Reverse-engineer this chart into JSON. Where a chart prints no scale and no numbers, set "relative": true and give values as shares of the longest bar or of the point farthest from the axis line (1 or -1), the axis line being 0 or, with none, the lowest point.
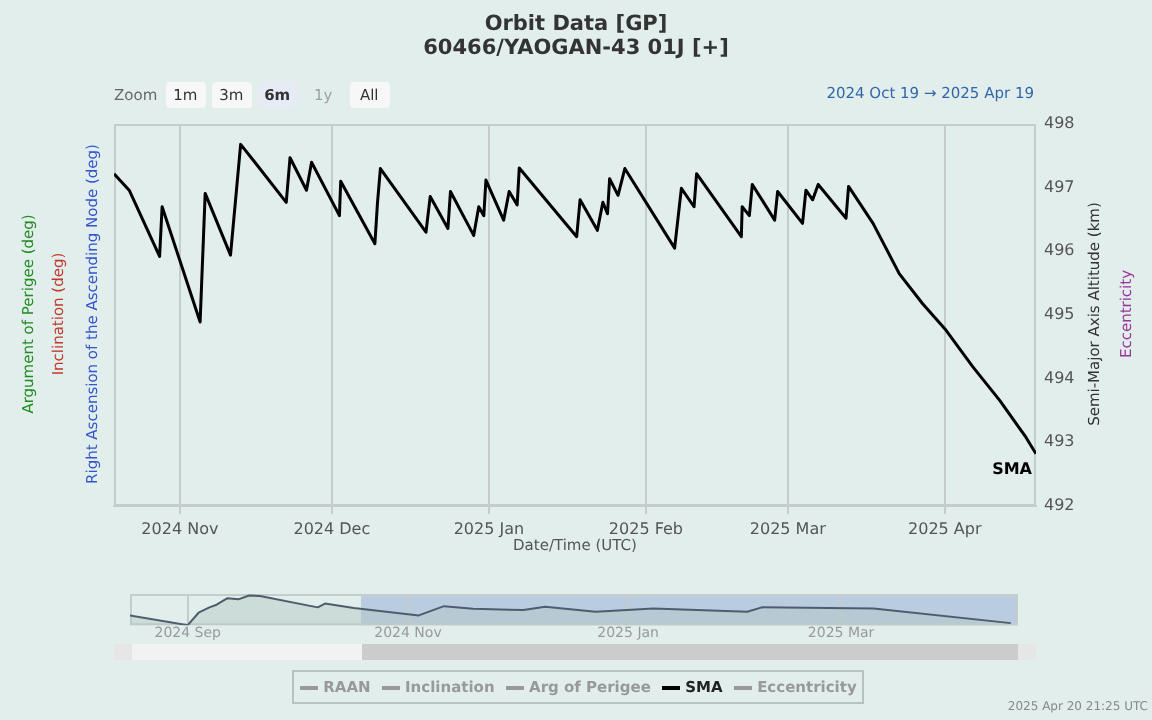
{
  "chart_data": [
    {
      "type": "line",
      "title": "Orbit Data [GP]",
      "subtitle": "60466/YAOGAN-43 01J [+]",
      "xlabel": "Date/Time (UTC)",
      "ylabel": "Semi-Major Axis Altitude (km)",
      "annotations": [
        "Right Ascension of the Ascending Node (deg)",
        "Inclination (deg)",
        "Argument of Perigee (deg)",
        "Eccentricity",
        "Zoom",
        "1m",
        "3m",
        "6m",
        "1y",
        "All",
        "2024 Oct 19 → 2025 Apr 19",
        "2025 Apr 20 21:25 UTC"
      ],
      "series": [
        {
          "name": "RAAN",
          "color": "#999999"
        },
        {
          "name": "Inclination",
          "color": "#999999"
        },
        {
          "name": "Arg of Perigee",
          "color": "#999999"
        },
        {
          "name": "SMA",
          "color": "#000000",
          "x": [
            "2024-10-19",
            "2024-10-22",
            "2024-10-28",
            "2024-10-28T12:00",
            "2024-11-05",
            "2024-11-06",
            "2024-11-11",
            "2024-11-13",
            "2024-11-16",
            "2024-11-22",
            "2024-11-22T18:00",
            "2024-11-26",
            "2024-11-27",
            "2024-12-02T12:00",
            "2024-12-02T18:00",
            "2024-12-09T12:00",
            "2024-12-10",
            "2024-12-10T14:00",
            "2024-12-19T14:00",
            "2024-12-20T10:00",
            "2024-12-23T22:00",
            "2024-12-24T10:00",
            "2024-12-29",
            "2024-12-30",
            "2024-12-31",
            "2024-12-31T10:00",
            "2025-01-03T22:00",
            "2025-01-05",
            "2025-01-06T14:00",
            "2025-01-07",
            "2025-01-18T08:00",
            "2025-01-19",
            "2025-01-22T10:00",
            "2025-01-23T12:00",
            "2025-01-24T10:00",
            "2025-01-24T20:00",
            "2025-01-26T12:00",
            "2025-01-27T20:00",
            "2025-02-06T16:00",
            "2025-02-08",
            "2025-02-10T12:00",
            "2025-02-11",
            "2025-02-19T20:00",
            "2025-02-20",
            "2025-02-21T10:00",
            "2025-02-22",
            "2025-02-26T10:00",
            "2025-02-27",
            "2025-03-03T22:00",
            "2025-03-04T14:00",
            "2025-03-05T22:00",
            "2025-03-07",
            "2025-03-12T12:00",
            "2025-03-13",
            "2025-03-17T20:00",
            "2025-03-23",
            "2025-03-27T14:00",
            "2025-04-01T06:00",
            "2025-04-06T12:00",
            "2025-04-11T20:00",
            "2025-04-17",
            "2025-04-19"
          ],
          "values": [
            497.22,
            496.96,
            495.92,
            496.7,
            494.89,
            496.91,
            495.94,
            497.68,
            497.38,
            496.77,
            497.47,
            496.96,
            497.4,
            496.56,
            497.1,
            496.12,
            496.75,
            497.3,
            496.3,
            496.86,
            496.36,
            496.94,
            496.25,
            496.7,
            496.56,
            497.12,
            496.49,
            496.94,
            496.73,
            497.31,
            496.23,
            496.81,
            496.33,
            496.77,
            496.59,
            497.14,
            496.88,
            497.3,
            496.05,
            496.99,
            496.7,
            497.22,
            496.23,
            496.7,
            496.56,
            497.05,
            496.49,
            496.94,
            496.44,
            496.96,
            496.81,
            497.05,
            496.52,
            497.02,
            496.44,
            495.65,
            495.18,
            494.76,
            494.19,
            493.66,
            493.08,
            492.82
          ]
        },
        {
          "name": "Eccentricity",
          "color": "#999999"
        }
      ],
      "xlim": [
        "2024-10-19",
        "2025-04-19"
      ],
      "xticks": [
        {
          "value": "2024-11-01",
          "label": "2024 Nov"
        },
        {
          "value": "2024-12-01",
          "label": "2024 Dec"
        },
        {
          "value": "2025-01-01",
          "label": "2025 Jan"
        },
        {
          "value": "2025-02-01",
          "label": "2025 Feb"
        },
        {
          "value": "2025-03-01",
          "label": "2025 Mar"
        },
        {
          "value": "2025-04-01",
          "label": "2025 Apr"
        }
      ],
      "ylim": [
        492,
        498
      ],
      "yticks": [
        492,
        493,
        494,
        495,
        496,
        497,
        498
      ],
      "grid": "x",
      "legend": "bottom",
      "marker": "none"
    },
    {
      "type": "area",
      "relative": true,
      "series": [
        {
          "color": "#4d5d6d",
          "x": [
            "2024-08-16",
            "2024-09-01",
            "2024-09-04",
            "2024-09-07",
            "2024-09-09",
            "2024-09-12",
            "2024-09-15",
            "2024-09-18",
            "2024-09-21",
            "2024-10-07",
            "2024-10-09",
            "2024-10-17",
            "2024-11-04",
            "2024-11-11",
            "2024-11-19",
            "2024-12-03",
            "2024-12-09",
            "2024-12-23",
            "2025-01-08",
            "2025-02-03",
            "2025-02-07",
            "2025-03-10",
            "2025-04-17"
          ],
          "values": [
            0.33,
            0,
            0.42,
            0.6,
            0.69,
            0.91,
            0.87,
            1,
            0.98,
            0.6,
            0.73,
            0.58,
            0.33,
            0.64,
            0.55,
            0.51,
            0.62,
            0.45,
            0.56,
            0.45,
            0.6,
            0.56,
            0.07
          ]
        }
      ],
      "xlim": [
        "2024-08-16",
        "2025-04-19"
      ],
      "xticks": [
        {
          "value": "2024-09-01",
          "label": "2024 Sep"
        },
        {
          "value": "2024-11-01",
          "label": "2024 Nov"
        },
        {
          "value": "2025-01-01",
          "label": "2025 Jan"
        },
        {
          "value": "2025-03-01",
          "label": "2025 Mar"
        }
      ],
      "bands": [
        {
          "axis": "x",
          "from": "2024-10-19",
          "to": "2025-04-19",
          "color": "#b3c6de"
        }
      ],
      "grid": "x",
      "tick_labels": "x"
    }
  ]
}
